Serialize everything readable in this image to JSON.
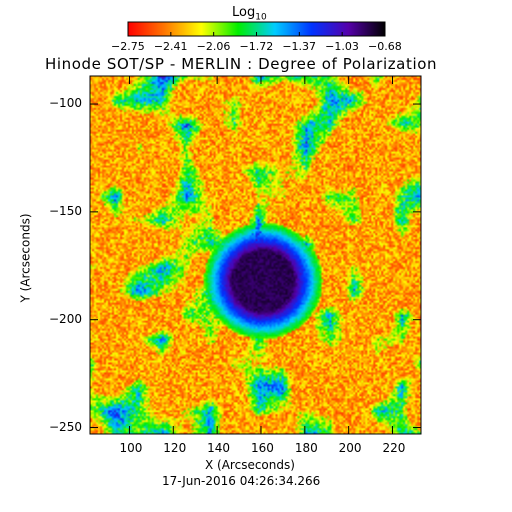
{
  "chart_data": {
    "type": "heatmap",
    "title": "Hinode SOT/SP - MERLIN : Degree of Polarization",
    "xlabel": "X (Arcseconds)",
    "ylabel": "Y (Arcseconds)",
    "xlim": [
      82,
      233
    ],
    "ylim": [
      -253,
      -87
    ],
    "x_ticks": [
      100,
      120,
      140,
      160,
      180,
      200,
      220
    ],
    "y_ticks": [
      -100,
      -150,
      -200,
      -250
    ],
    "timestamp": "17-Jun-2016 04:26:34.266",
    "colorbar": {
      "label": "Log",
      "label_subscript": "10",
      "range": [
        -2.75,
        -0.68
      ],
      "tick_labels": [
        "-2.75",
        "-2.41",
        "-2.06",
        "-1.72",
        "-1.37",
        "-1.03",
        "-0.68"
      ],
      "colormap": [
        "#ff0000",
        "#ff7700",
        "#ffff00",
        "#00ee00",
        "#00ccff",
        "#0033ff",
        "#5500aa",
        "#000000"
      ]
    },
    "features": {
      "sunspot_umbra_center": [
        161,
        -182
      ],
      "sunspot_umbra_radius": 14,
      "sunspot_penumbra_radius": 22,
      "background_level": -2.6
    }
  }
}
